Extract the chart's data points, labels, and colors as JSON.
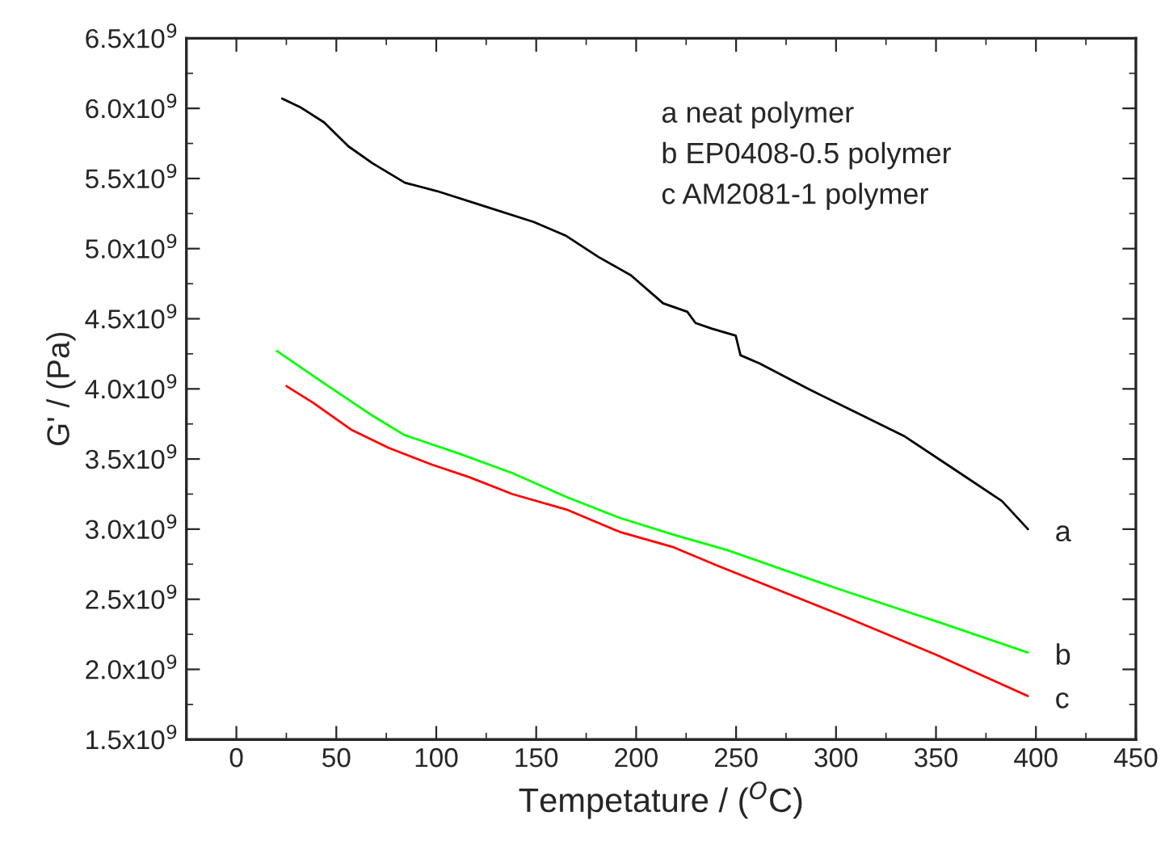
{
  "chart_data": {
    "type": "line",
    "xlabel": "Tempetature / ($^{O}$C)",
    "ylabel": "G' / (Pa)",
    "annotations": [
      "a neat polymer",
      "b EP0408-0.5 polymer",
      "c AM2081-1 polymer"
    ],
    "xlim": [
      -25,
      450
    ],
    "xticks": [
      0,
      50,
      100,
      150,
      200,
      250,
      300,
      350,
      400,
      450
    ],
    "ylim": [
      1500000000.0,
      6500000000.0
    ],
    "yticks": [
      {
        "value": 1500000000.0,
        "label": "1.5x10$^{9}$"
      },
      {
        "value": 2000000000.0,
        "label": "2.0x10$^{9}$"
      },
      {
        "value": 2500000000.0,
        "label": "2.5x10$^{9}$"
      },
      {
        "value": 3000000000.0,
        "label": "3.0x10$^{9}$"
      },
      {
        "value": 3500000000.0,
        "label": "3.5x10$^{9}$"
      },
      {
        "value": 4000000000.0,
        "label": "4.0x10$^{9}$"
      },
      {
        "value": 4500000000.0,
        "label": "4.5x10$^{9}$"
      },
      {
        "value": 5000000000.0,
        "label": "5.0x10$^{9}$"
      },
      {
        "value": 5500000000.0,
        "label": "5.5x10$^{9}$"
      },
      {
        "value": 6000000000.0,
        "label": "6.0x10$^{9}$"
      },
      {
        "value": 6500000000.0,
        "label": "6.5x10$^{9}$"
      }
    ],
    "grid": false,
    "legend": false,
    "marker": "none",
    "line_style": "solid",
    "series": [
      {
        "name": "a",
        "color": "#000000",
        "x": [
          22.9,
          31.8,
          43.9,
          56.0,
          68.0,
          84.3,
          100.4,
          124.6,
          148.8,
          165.1,
          181.2,
          197.4,
          213.5,
          225.6,
          229.7,
          237.7,
          249.8,
          252.2,
          261.9,
          286.1,
          310.3,
          334.5,
          358.8,
          383.0,
          396.0
        ],
        "values": [
          6070000000.0,
          6010000000.0,
          5900000000.0,
          5730000000.0,
          5610000000.0,
          5470000000.0,
          5410000000.0,
          5300000000.0,
          5190000000.0,
          5090000000.0,
          4940000000.0,
          4810000000.0,
          4610000000.0,
          4550000000.0,
          4470000000.0,
          4430000000.0,
          4380000000.0,
          4240000000.0,
          4180000000.0,
          4000000000.0,
          3830000000.0,
          3660000000.0,
          3430000000.0,
          3200000000.0,
          3000000000.0
        ]
      },
      {
        "name": "b",
        "color": "#00ff00",
        "x": [
          20.3,
          43.9,
          68.0,
          84.3,
          111.2,
          138.1,
          165.1,
          191.9,
          218.9,
          245.7,
          302.0,
          350.7,
          396.0
        ],
        "values": [
          4270000000.0,
          4040000000.0,
          3810000000.0,
          3670000000.0,
          3540000000.0,
          3400000000.0,
          3230000000.0,
          3080000000.0,
          2960000000.0,
          2850000000.0,
          2570000000.0,
          2340000000.0,
          2120000000.0
        ]
      },
      {
        "name": "c",
        "color": "#ff0000",
        "x": [
          25.1,
          38.5,
          57.4,
          76.2,
          97.8,
          116.6,
          138.1,
          165.1,
          191.9,
          218.9,
          240.6,
          302.0,
          350.7,
          396.0
        ],
        "values": [
          4020000000.0,
          3900000000.0,
          3710000000.0,
          3580000000.0,
          3460000000.0,
          3370000000.0,
          3250000000.0,
          3140000000.0,
          2980000000.0,
          2870000000.0,
          2740000000.0,
          2390000000.0,
          2100000000.0,
          1810000000.0
        ]
      }
    ]
  }
}
